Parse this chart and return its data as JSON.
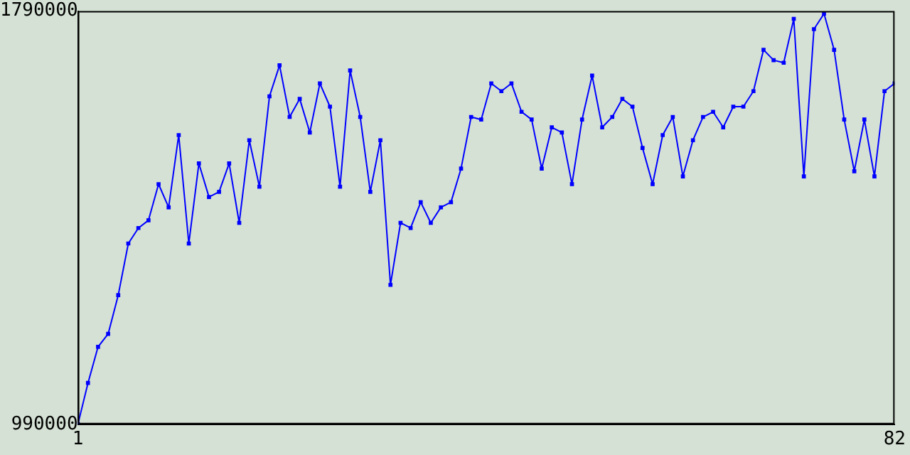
{
  "chart_data": {
    "type": "line",
    "x": [
      1,
      2,
      3,
      4,
      5,
      6,
      7,
      8,
      9,
      10,
      11,
      12,
      13,
      14,
      15,
      16,
      17,
      18,
      19,
      20,
      21,
      22,
      23,
      24,
      25,
      26,
      27,
      28,
      29,
      30,
      31,
      32,
      33,
      34,
      35,
      36,
      37,
      38,
      39,
      40,
      41,
      42,
      43,
      44,
      45,
      46,
      47,
      48,
      49,
      50,
      51,
      52,
      53,
      54,
      55,
      56,
      57,
      58,
      59,
      60,
      61,
      62,
      63,
      64,
      65,
      66,
      67,
      68,
      69,
      70,
      71,
      72,
      73,
      74,
      75,
      76,
      77,
      78,
      79,
      80,
      81,
      82
    ],
    "series": [
      {
        "color": "#0000ff",
        "values": [
          990000,
          1070000,
          1140000,
          1165000,
          1240000,
          1340000,
          1370000,
          1385000,
          1455000,
          1410000,
          1550000,
          1340000,
          1495000,
          1430000,
          1440000,
          1495000,
          1380000,
          1540000,
          1450000,
          1625000,
          1685000,
          1585000,
          1620000,
          1555000,
          1650000,
          1605000,
          1450000,
          1675000,
          1585000,
          1440000,
          1540000,
          1260000,
          1380000,
          1370000,
          1420000,
          1380000,
          1410000,
          1420000,
          1485000,
          1585000,
          1580000,
          1650000,
          1635000,
          1650000,
          1595000,
          1580000,
          1485000,
          1565000,
          1555000,
          1455000,
          1580000,
          1665000,
          1565000,
          1585000,
          1620000,
          1605000,
          1525000,
          1455000,
          1550000,
          1585000,
          1470000,
          1540000,
          1585000,
          1595000,
          1565000,
          1605000,
          1605000,
          1635000,
          1715000,
          1695000,
          1690000,
          1775000,
          1470000,
          1755000,
          1785000,
          1715000,
          1580000,
          1480000,
          1580000,
          1470000,
          1635000,
          1650000
        ]
      }
    ],
    "xlim": [
      1,
      82
    ],
    "xticks": [
      1,
      82
    ],
    "ylim": [
      990000,
      1790000
    ],
    "yticks": [
      990000,
      1790000
    ],
    "grid": false,
    "legend": false,
    "marker": "square",
    "line_style": "solid"
  }
}
